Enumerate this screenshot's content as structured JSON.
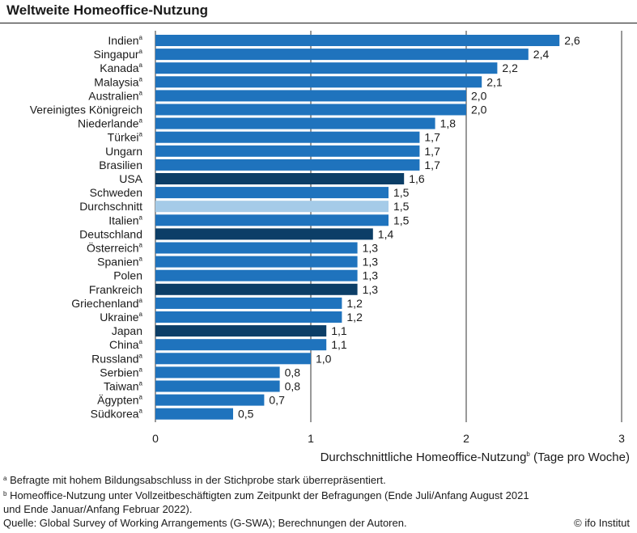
{
  "title": "Weltweite Homeoffice-Nutzung",
  "chart_data": {
    "type": "bar",
    "orientation": "horizontal",
    "categories": [
      "Indien",
      "Singapur",
      "Kanada",
      "Malaysia",
      "Australien",
      "Vereinigtes Königreich",
      "Niederlande",
      "Türkei",
      "Ungarn",
      "Brasilien",
      "USA",
      "Schweden",
      "Durchschnitt",
      "Italien",
      "Deutschland",
      "Österreich",
      "Spanien",
      "Polen",
      "Frankreich",
      "Griechenland",
      "Ukraine",
      "Japan",
      "China",
      "Russland",
      "Serbien",
      "Taiwan",
      "Ägypten",
      "Südkorea"
    ],
    "category_footnotes": [
      "a",
      "a",
      "a",
      "a",
      "a",
      "",
      "a",
      "a",
      "",
      "",
      "",
      "",
      "",
      "a",
      "",
      "a",
      "a",
      "",
      "",
      "a",
      "a",
      "",
      "a",
      "a",
      "a",
      "a",
      "a",
      "a"
    ],
    "values": [
      2.6,
      2.4,
      2.2,
      2.1,
      2.0,
      2.0,
      1.8,
      1.7,
      1.7,
      1.7,
      1.6,
      1.5,
      1.5,
      1.5,
      1.4,
      1.3,
      1.3,
      1.3,
      1.3,
      1.2,
      1.2,
      1.1,
      1.1,
      1.0,
      0.8,
      0.8,
      0.7,
      0.5
    ],
    "value_labels": [
      "2,6",
      "2,4",
      "2,2",
      "2,1",
      "2,0",
      "2,0",
      "1,8",
      "1,7",
      "1,7",
      "1,7",
      "1,6",
      "1,5",
      "1,5",
      "1,5",
      "1,4",
      "1,3",
      "1,3",
      "1,3",
      "1,3",
      "1,2",
      "1,2",
      "1,1",
      "1,1",
      "1,0",
      "0,8",
      "0,8",
      "0,7",
      "0,5"
    ],
    "bar_styles": [
      "std",
      "std",
      "std",
      "std",
      "std",
      "std",
      "std",
      "std",
      "std",
      "std",
      "dark",
      "std",
      "light",
      "std",
      "dark",
      "std",
      "std",
      "std",
      "dark",
      "std",
      "std",
      "dark",
      "std",
      "std",
      "std",
      "std",
      "std",
      "std"
    ],
    "colors": {
      "std": "#1f73bd",
      "dark": "#0c3e67",
      "light": "#a5cbe8"
    },
    "xlim": [
      0,
      3
    ],
    "xticks": [
      0,
      1,
      2,
      3
    ],
    "xtick_labels": [
      "0",
      "1",
      "2",
      "3"
    ],
    "grid": true,
    "xlabel": "Durchschnittliche Homeoffice-Nutzung",
    "xlabel_sup": "b",
    "xlabel_suffix": " (Tage pro Woche)"
  },
  "notes": {
    "a": {
      "marker": "a",
      "text": " Befragte mit hohem Bildungsabschluss in der Stichprobe stark überrepräsentiert."
    },
    "b_line1": {
      "marker": "b",
      "text": " Homeoffice-Nutzung unter Vollzeitbeschäftigten zum Zeitpunkt der Befragungen (Ende Juli/Anfang August 2021"
    },
    "b_line2": "und Ende Januar/Anfang Februar 2022).",
    "source": "Quelle: Global Survey of Working Arrangements (G-SWA); Berechnungen der Autoren.",
    "credit": "© ifo Institut"
  }
}
